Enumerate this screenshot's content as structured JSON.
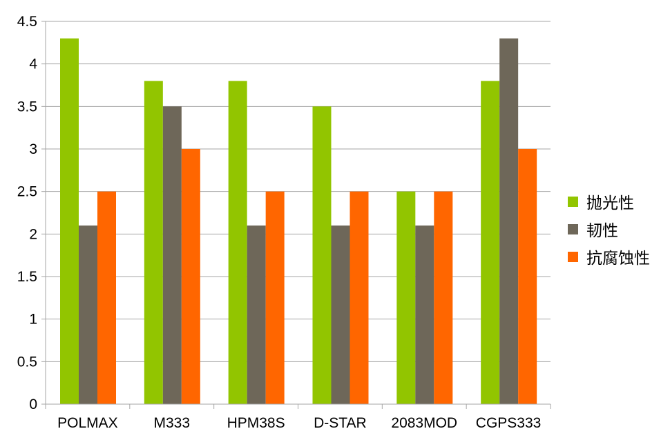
{
  "chart_data": {
    "type": "bar",
    "categories": [
      "POLMAX",
      "M333",
      "HPM38S",
      "D-STAR",
      "2083MOD",
      "CGPS333"
    ],
    "series": [
      {
        "name": "抛光性",
        "color": "#92C500",
        "values": [
          4.3,
          3.8,
          3.8,
          3.5,
          2.5,
          3.8
        ]
      },
      {
        "name": "韧性",
        "color": "#6E6759",
        "values": [
          2.1,
          3.5,
          2.1,
          2.1,
          2.1,
          4.3
        ]
      },
      {
        "name": "抗腐蚀性",
        "color": "#FF6600",
        "values": [
          2.5,
          3.0,
          2.5,
          2.5,
          2.5,
          3.0
        ]
      }
    ],
    "y_ticks": [
      "0",
      "0.5",
      "1",
      "1.5",
      "2",
      "2.5",
      "3",
      "3.5",
      "4",
      "4.5"
    ],
    "ylim": [
      0,
      4.5
    ],
    "grid": true,
    "legend_position": "right",
    "title": "",
    "xlabel": "",
    "ylabel": ""
  }
}
